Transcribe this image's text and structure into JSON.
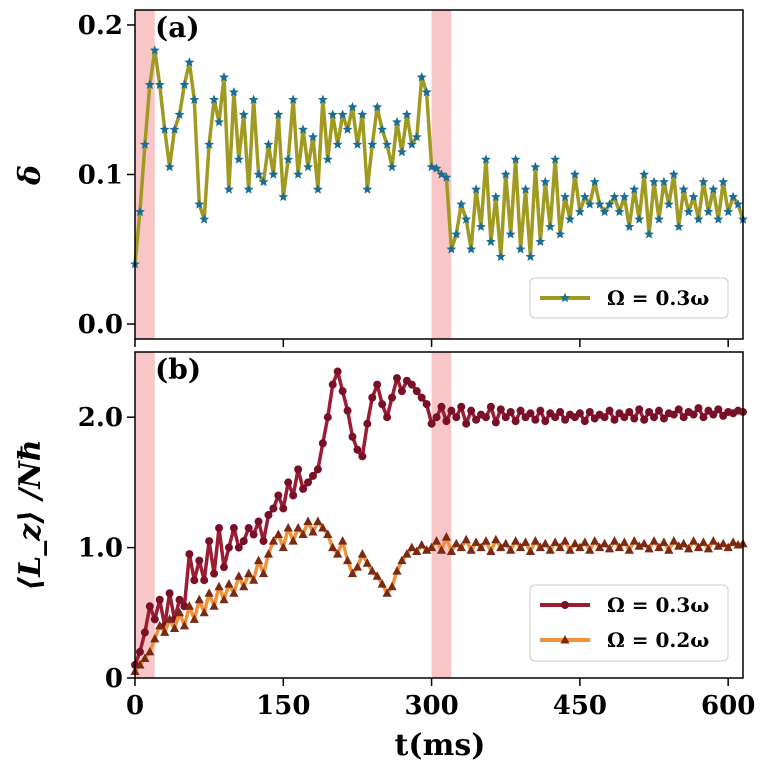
{
  "chart_data": [
    {
      "panel_label": "(a)",
      "type": "line",
      "xlabel": "",
      "ylabel": "δ",
      "xlim": [
        0,
        615
      ],
      "ylim": [
        -0.01,
        0.21
      ],
      "yticks": [
        0.0,
        0.1,
        0.2
      ],
      "ytick_labels": [
        "0.0",
        "0.1",
        "0.2"
      ],
      "shaded_regions": [
        [
          0,
          20
        ],
        [
          300,
          320
        ]
      ],
      "legend_position": "bottom-right",
      "series": [
        {
          "name": "Ω = 0.3ω",
          "line_color": "#a19a22",
          "marker": "star",
          "marker_color": "#1a6d94",
          "x": [
            0,
            5,
            10,
            15,
            20,
            25,
            30,
            35,
            40,
            45,
            50,
            55,
            60,
            65,
            70,
            75,
            80,
            85,
            90,
            95,
            100,
            105,
            110,
            115,
            120,
            125,
            130,
            135,
            140,
            145,
            150,
            155,
            160,
            165,
            170,
            175,
            180,
            185,
            190,
            195,
            200,
            205,
            210,
            215,
            220,
            225,
            230,
            235,
            240,
            245,
            250,
            255,
            260,
            265,
            270,
            275,
            280,
            285,
            290,
            295,
            300,
            305,
            310,
            315,
            320,
            325,
            330,
            335,
            340,
            345,
            350,
            355,
            360,
            365,
            370,
            375,
            380,
            385,
            390,
            395,
            400,
            405,
            410,
            415,
            420,
            425,
            430,
            435,
            440,
            445,
            450,
            455,
            460,
            465,
            470,
            475,
            480,
            485,
            490,
            495,
            500,
            505,
            510,
            515,
            520,
            525,
            530,
            535,
            540,
            545,
            550,
            555,
            560,
            565,
            570,
            575,
            580,
            585,
            590,
            595,
            600,
            605,
            610,
            615
          ],
          "y": [
            0.04,
            0.075,
            0.12,
            0.16,
            0.183,
            0.16,
            0.13,
            0.105,
            0.13,
            0.14,
            0.16,
            0.175,
            0.15,
            0.08,
            0.07,
            0.12,
            0.15,
            0.135,
            0.165,
            0.09,
            0.155,
            0.11,
            0.14,
            0.09,
            0.15,
            0.1,
            0.095,
            0.12,
            0.1,
            0.14,
            0.085,
            0.11,
            0.15,
            0.1,
            0.13,
            0.105,
            0.125,
            0.09,
            0.15,
            0.11,
            0.14,
            0.12,
            0.14,
            0.13,
            0.145,
            0.12,
            0.14,
            0.09,
            0.12,
            0.145,
            0.13,
            0.12,
            0.105,
            0.135,
            0.115,
            0.14,
            0.12,
            0.125,
            0.165,
            0.155,
            0.105,
            0.104,
            0.1,
            0.098,
            0.05,
            0.06,
            0.08,
            0.07,
            0.05,
            0.09,
            0.065,
            0.11,
            0.055,
            0.085,
            0.045,
            0.1,
            0.06,
            0.11,
            0.05,
            0.09,
            0.045,
            0.105,
            0.055,
            0.095,
            0.065,
            0.11,
            0.06,
            0.085,
            0.07,
            0.1,
            0.075,
            0.085,
            0.08,
            0.095,
            0.08,
            0.075,
            0.08,
            0.085,
            0.075,
            0.085,
            0.065,
            0.09,
            0.07,
            0.1,
            0.06,
            0.095,
            0.07,
            0.095,
            0.08,
            0.1,
            0.065,
            0.09,
            0.075,
            0.085,
            0.07,
            0.095,
            0.075,
            0.09,
            0.07,
            0.095,
            0.075,
            0.085,
            0.08,
            0.07
          ]
        }
      ]
    },
    {
      "panel_label": "(b)",
      "type": "line",
      "xlabel": "t(ms)",
      "ylabel": "⟨L_z⟩ /Nħ",
      "xlim": [
        0,
        615
      ],
      "ylim": [
        0,
        2.5
      ],
      "xticks": [
        0,
        150,
        300,
        450,
        600
      ],
      "xtick_labels": [
        "0",
        "150",
        "300",
        "450",
        "600"
      ],
      "yticks": [
        0,
        1.0,
        2.0
      ],
      "ytick_labels": [
        "0",
        "1.0",
        "2.0"
      ],
      "shaded_regions": [
        [
          0,
          20
        ],
        [
          300,
          320
        ]
      ],
      "legend_position": "bottom-right",
      "series": [
        {
          "name": "Ω = 0.3ω",
          "line_color": "#9b1c33",
          "marker": "circle",
          "marker_color": "#7a1027",
          "x": [
            0,
            5,
            10,
            15,
            20,
            25,
            30,
            35,
            40,
            45,
            50,
            55,
            60,
            65,
            70,
            75,
            80,
            85,
            90,
            95,
            100,
            105,
            110,
            115,
            120,
            125,
            130,
            135,
            140,
            145,
            150,
            155,
            160,
            165,
            170,
            175,
            180,
            185,
            190,
            195,
            200,
            205,
            210,
            215,
            220,
            225,
            230,
            235,
            240,
            245,
            250,
            255,
            260,
            265,
            270,
            275,
            280,
            285,
            290,
            295,
            300,
            305,
            310,
            315,
            320,
            325,
            330,
            335,
            340,
            345,
            350,
            355,
            360,
            365,
            370,
            375,
            380,
            385,
            390,
            395,
            400,
            405,
            410,
            415,
            420,
            425,
            430,
            435,
            440,
            445,
            450,
            455,
            460,
            465,
            470,
            475,
            480,
            485,
            490,
            495,
            500,
            505,
            510,
            515,
            520,
            525,
            530,
            535,
            540,
            545,
            550,
            555,
            560,
            565,
            570,
            575,
            580,
            585,
            590,
            595,
            600,
            605,
            610,
            615
          ],
          "y": [
            0.1,
            0.2,
            0.35,
            0.55,
            0.45,
            0.6,
            0.4,
            0.65,
            0.45,
            0.6,
            0.55,
            0.95,
            0.75,
            0.9,
            0.75,
            1.05,
            0.8,
            1.15,
            0.85,
            1.0,
            1.15,
            1.0,
            1.05,
            1.15,
            1.1,
            1.2,
            1.05,
            1.25,
            1.3,
            1.4,
            1.3,
            1.5,
            1.4,
            1.6,
            1.45,
            1.5,
            1.55,
            1.6,
            1.8,
            2.0,
            2.25,
            2.35,
            2.2,
            2.05,
            1.85,
            1.75,
            1.7,
            1.95,
            2.15,
            2.25,
            2.1,
            2.0,
            2.15,
            2.3,
            2.2,
            2.28,
            2.25,
            2.2,
            2.15,
            2.1,
            1.95,
            2.0,
            2.08,
            1.97,
            2.05,
            2.0,
            2.08,
            1.95,
            2.05,
            1.98,
            2.02,
            2.0,
            2.08,
            1.96,
            2.06,
            2.0,
            2.04,
            1.97,
            2.05,
            2.0,
            2.03,
            1.98,
            2.05,
            1.97,
            2.03,
            2.0,
            2.04,
            1.98,
            2.02,
            2.0,
            2.03,
            1.97,
            2.04,
            1.99,
            2.02,
            2.0,
            2.05,
            1.98,
            2.03,
            2.0,
            2.04,
            1.99,
            2.06,
            1.98,
            2.04,
            2.0,
            2.05,
            1.99,
            2.03,
            2.02,
            2.06,
            2.0,
            2.04,
            2.02,
            2.07,
            2.0,
            2.05,
            2.02,
            2.06,
            2.01,
            2.04,
            2.03,
            2.05,
            2.04
          ]
        },
        {
          "name": "Ω = 0.2ω",
          "line_color": "#f0923a",
          "marker": "triangle",
          "marker_color": "#7a2a14",
          "x": [
            0,
            5,
            10,
            15,
            20,
            25,
            30,
            35,
            40,
            45,
            50,
            55,
            60,
            65,
            70,
            75,
            80,
            85,
            90,
            95,
            100,
            105,
            110,
            115,
            120,
            125,
            130,
            135,
            140,
            145,
            150,
            155,
            160,
            165,
            170,
            175,
            180,
            185,
            190,
            195,
            200,
            205,
            210,
            215,
            220,
            225,
            230,
            235,
            240,
            245,
            250,
            255,
            260,
            265,
            270,
            275,
            280,
            285,
            290,
            295,
            300,
            305,
            310,
            315,
            320,
            325,
            330,
            335,
            340,
            345,
            350,
            355,
            360,
            365,
            370,
            375,
            380,
            385,
            390,
            395,
            400,
            405,
            410,
            415,
            420,
            425,
            430,
            435,
            440,
            445,
            450,
            455,
            460,
            465,
            470,
            475,
            480,
            485,
            490,
            495,
            500,
            505,
            510,
            515,
            520,
            525,
            530,
            535,
            540,
            545,
            550,
            555,
            560,
            565,
            570,
            575,
            580,
            585,
            590,
            595,
            600,
            605,
            610,
            615
          ],
          "y": [
            0.05,
            0.1,
            0.15,
            0.2,
            0.3,
            0.4,
            0.35,
            0.45,
            0.38,
            0.5,
            0.4,
            0.55,
            0.45,
            0.6,
            0.5,
            0.65,
            0.55,
            0.7,
            0.6,
            0.72,
            0.65,
            0.78,
            0.7,
            0.8,
            0.75,
            0.9,
            0.8,
            0.95,
            1.05,
            1.1,
            1.0,
            1.15,
            1.05,
            1.15,
            1.1,
            1.2,
            1.12,
            1.2,
            1.15,
            1.1,
            1.0,
            0.95,
            1.05,
            0.9,
            0.8,
            0.85,
            0.95,
            0.88,
            0.82,
            0.78,
            0.72,
            0.65,
            0.7,
            0.82,
            0.9,
            0.95,
            1.0,
            0.97,
            1.02,
            0.98,
            1.0,
            1.05,
            0.98,
            1.08,
            0.97,
            1.03,
            1.0,
            1.06,
            0.98,
            1.04,
            1.0,
            1.05,
            0.97,
            1.06,
            1.0,
            1.03,
            0.98,
            1.05,
            1.0,
            1.04,
            0.97,
            1.05,
            1.0,
            1.03,
            0.98,
            1.04,
            1.0,
            1.05,
            0.98,
            1.03,
            1.0,
            1.04,
            0.98,
            1.05,
            1.0,
            1.03,
            0.99,
            1.05,
            1.0,
            1.04,
            0.98,
            1.05,
            1.01,
            1.03,
            0.99,
            1.05,
            1.0,
            1.04,
            0.98,
            1.05,
            1.01,
            1.03,
            0.99,
            1.05,
            1.0,
            1.04,
            0.99,
            1.05,
            1.01,
            1.03,
            1.0,
            1.04,
            1.02,
            1.03
          ]
        }
      ]
    }
  ],
  "colors": {
    "shade": "#f9c6c7"
  }
}
